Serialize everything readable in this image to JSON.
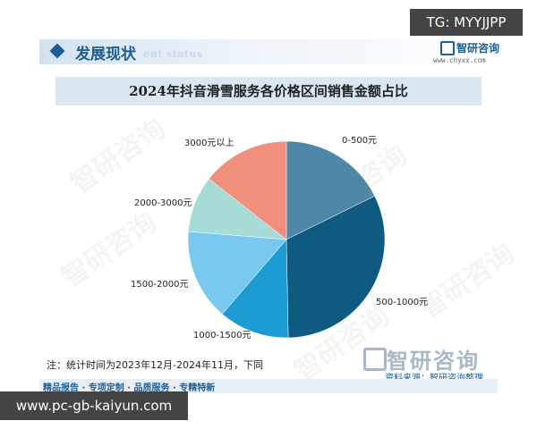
{
  "badge_tg": "TG: MYYJJPP",
  "header": {
    "title": "发展现状",
    "subtitle": "ent status",
    "logo_text": "智研咨询",
    "logo_url": "www.chyxx.com"
  },
  "watermark_text": "智研咨询",
  "bottom_logo_text": "智研咨询",
  "note": "注：统计时间为2023年12月-2024年11月，下同",
  "source": "资料来源：智研咨询整理",
  "footer": "精品报告 · 专项定制 · 品质服务 · 专精特新",
  "url_badge": "www.pc-gb-kaiyun.com",
  "colors": {
    "brand": "#1d5e95",
    "slices": [
      "#4f87a8",
      "#0f5a80",
      "#1d9bd3",
      "#78c8ef",
      "#a6dbd6",
      "#f08f7c"
    ]
  },
  "chart_data": {
    "type": "pie",
    "title": "2024年抖音滑雪服务各价格区间销售金额占比",
    "slices": [
      {
        "label": "0-500元",
        "value": 17.7
      },
      {
        "label": "500-1000元",
        "value": 32.0
      },
      {
        "label": "1000-1500元",
        "value": 11.6
      },
      {
        "label": "1500-2000元",
        "value": 15.0
      },
      {
        "label": "2000-3000元",
        "value": 9.3
      },
      {
        "label": "3000元以上",
        "value": 14.4
      }
    ]
  }
}
